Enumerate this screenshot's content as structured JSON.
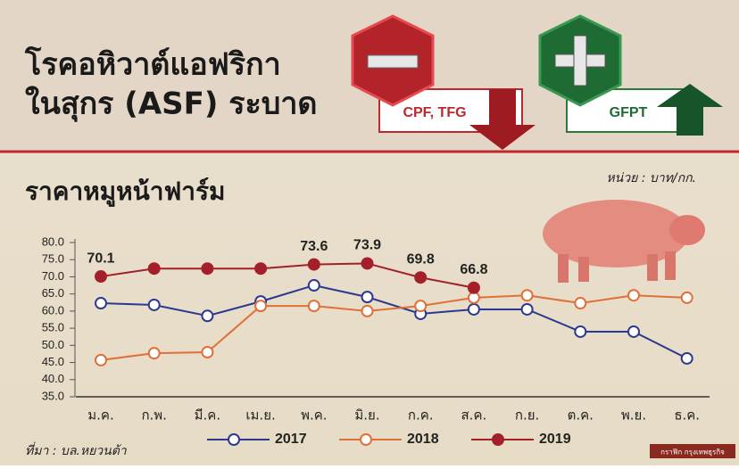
{
  "header": {
    "title_lines": [
      "โรคอหิวาต์แอฟริกา",
      "ในสุกร (ASF) ระบาด"
    ],
    "negative_badge": "CPF, TFG",
    "positive_badge": "GFPT"
  },
  "chart_data": {
    "type": "line",
    "title": "ราคาหมูหน้าฟาร์ม",
    "unit": "หน่วย : บาท/กก.",
    "source": "ที่มา : บล.หยวนต้า",
    "credit": "กราฟิก กรุงเทพธุรกิจ",
    "categories": [
      "ม.ค.",
      "ก.พ.",
      "มี.ค.",
      "เม.ย.",
      "พ.ค.",
      "มิ.ย.",
      "ก.ค.",
      "ส.ค.",
      "ก.ย.",
      "ต.ค.",
      "พ.ย.",
      "ธ.ค."
    ],
    "ylim": [
      35,
      80
    ],
    "yticks": [
      {
        "value": 35,
        "label": "35.0"
      },
      {
        "value": 40,
        "label": "40.0"
      },
      {
        "value": 45,
        "label": "45.0"
      },
      {
        "value": 50,
        "label": "50.0"
      },
      {
        "value": 55,
        "label": "55.0"
      },
      {
        "value": 60,
        "label": "60.0"
      },
      {
        "value": 65,
        "label": "65.0"
      },
      {
        "value": 70,
        "label": "70.0"
      },
      {
        "value": 75,
        "label": "75.0"
      },
      {
        "value": 80,
        "label": "80.0"
      }
    ],
    "grid": false,
    "series": [
      {
        "name": "2017",
        "color": "#2b3990",
        "marker_fill": "#ffffff",
        "values": [
          62.3,
          61.8,
          58.6,
          62.8,
          67.5,
          64.1,
          59.2,
          60.5,
          60.5,
          54.0,
          54.0,
          46.2
        ]
      },
      {
        "name": "2018",
        "color": "#e0703a",
        "marker_fill": "#ffffff",
        "values": [
          45.7,
          47.7,
          48.0,
          61.5,
          61.5,
          60.0,
          61.5,
          63.9,
          64.6,
          62.3,
          64.6,
          63.9
        ]
      },
      {
        "name": "2019",
        "color": "#a3202a",
        "marker_fill": "#a3202a",
        "values": [
          70.1,
          72.4,
          72.4,
          72.4,
          73.6,
          73.9,
          69.8,
          66.8,
          null,
          null,
          null,
          null
        ],
        "value_labels": [
          "70.1",
          null,
          null,
          null,
          "73.6",
          "73.9",
          "69.8",
          "66.8",
          null,
          null,
          null,
          null
        ]
      }
    ]
  }
}
